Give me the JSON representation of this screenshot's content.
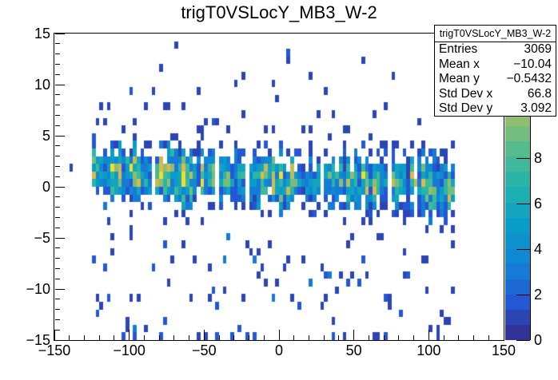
{
  "title": "trigT0VSLocY_MB3_W-2",
  "chart_data": {
    "type": "heatmap",
    "title": "trigT0VSLocY_MB3_W-2",
    "xlabel": "",
    "ylabel": "",
    "x_range": [
      -150,
      150
    ],
    "y_range": [
      -15,
      15
    ],
    "x_bin_width": 2.5,
    "y_bin_width": 0.75,
    "grid": false,
    "x_ticks": {
      "major": [
        -150,
        -100,
        -50,
        0,
        50,
        100,
        150
      ],
      "labels": [
        "−150",
        "−100",
        "−50",
        "0",
        "50",
        "100",
        "150"
      ],
      "minor_step": 10
    },
    "y_ticks": {
      "major": [
        -15,
        -10,
        -5,
        0,
        5,
        10,
        15
      ],
      "labels": [
        "−15",
        "−10",
        "−5",
        "0",
        "5",
        "10",
        "15"
      ],
      "minor_step": 1
    },
    "z_axis": {
      "max": 13.5,
      "n_contours": 20,
      "ticks": [
        0,
        2,
        4,
        6,
        8
      ],
      "labels": [
        "0",
        "2",
        "4",
        "6",
        "8"
      ]
    },
    "palette_stops": [
      [
        0.0,
        "#352a87"
      ],
      [
        0.125,
        "#2457d4"
      ],
      [
        0.25,
        "#1184d6"
      ],
      [
        0.375,
        "#0a9cc9"
      ],
      [
        0.5,
        "#1fb3ac"
      ],
      [
        0.625,
        "#55bd8d"
      ],
      [
        0.75,
        "#a0bd68"
      ],
      [
        0.875,
        "#dab94f"
      ],
      [
        0.94,
        "#f3cb2f"
      ],
      [
        1.0,
        "#f3ea2c"
      ]
    ],
    "stats": {
      "header": "trigT0VSLocY_MB3_W-2",
      "rows": [
        {
          "label": "Entries",
          "value": "3069"
        },
        {
          "label": "Mean x",
          "value": "−10.04"
        },
        {
          "label": "Mean y",
          "value": "−0.5432"
        },
        {
          "label": "Std Dev x",
          "value": "66.8"
        },
        {
          "label": "Std Dev y",
          "value": "3.092"
        }
      ]
    },
    "distribution": {
      "seed": 20240607,
      "band": {
        "x_start": -125,
        "x_end": 116.25,
        "center_left": 1.5,
        "center_right": 0.0,
        "center_jitter": 0.9,
        "sigma_min": 1.25,
        "sigma_max": 2.2,
        "amp_min": 4,
        "amp_max": 13.2,
        "fill_scale": 1.3,
        "gap_prob": 0.05,
        "y_min": -5.625,
        "y_max": 6.4
      },
      "scatter_below": {
        "y_min": -15,
        "y_max": -4.5,
        "prob": 0.6,
        "prob2": 0.2
      },
      "scatter_above": {
        "y_min": 5.25,
        "y_max": 9.75,
        "prob_left": 0.45,
        "prob_right": 0.18,
        "v1_prob": 0.85
      },
      "scatter_top": {
        "y_min": 9.75,
        "y_max": 14.2,
        "prob": 0.04
      },
      "extra_cells": [
        {
          "x": -138.8,
          "y": 1.9,
          "v": 1
        },
        {
          "x": 6,
          "y": 13.2,
          "v": 2
        },
        {
          "x": 6,
          "y": 12.5,
          "v": 1
        },
        {
          "x": 21,
          "y": 11.2,
          "v": 1
        },
        {
          "x": -4.3,
          "y": 9.9,
          "v": 1
        },
        {
          "x": -30,
          "y": 10.4,
          "v": 1
        },
        {
          "x": 75,
          "y": 10.8,
          "v": 1
        },
        {
          "x": -53,
          "y": 9.6,
          "v": 1
        },
        {
          "x": 32,
          "y": 9.4,
          "v": 1
        },
        {
          "x": -112,
          "y": 2.1,
          "v": 13
        },
        {
          "x": -99.5,
          "y": 2.0,
          "v": 13
        },
        {
          "x": 47,
          "y": 0.6,
          "v": 11
        },
        {
          "x": 90,
          "y": 0.2,
          "v": 11
        },
        {
          "x": -60,
          "y": 1.3,
          "v": 11
        },
        {
          "x": -104,
          "y": -14.7,
          "v": 2
        },
        {
          "x": -96,
          "y": -14.7,
          "v": 2
        },
        {
          "x": -41,
          "y": -14.7,
          "v": 2
        },
        {
          "x": -22,
          "y": -14.7,
          "v": 2
        },
        {
          "x": -15.5,
          "y": -14.7,
          "v": 2
        },
        {
          "x": 37,
          "y": -14.7,
          "v": 2
        },
        {
          "x": 72,
          "y": -14.7,
          "v": 2
        }
      ]
    }
  }
}
